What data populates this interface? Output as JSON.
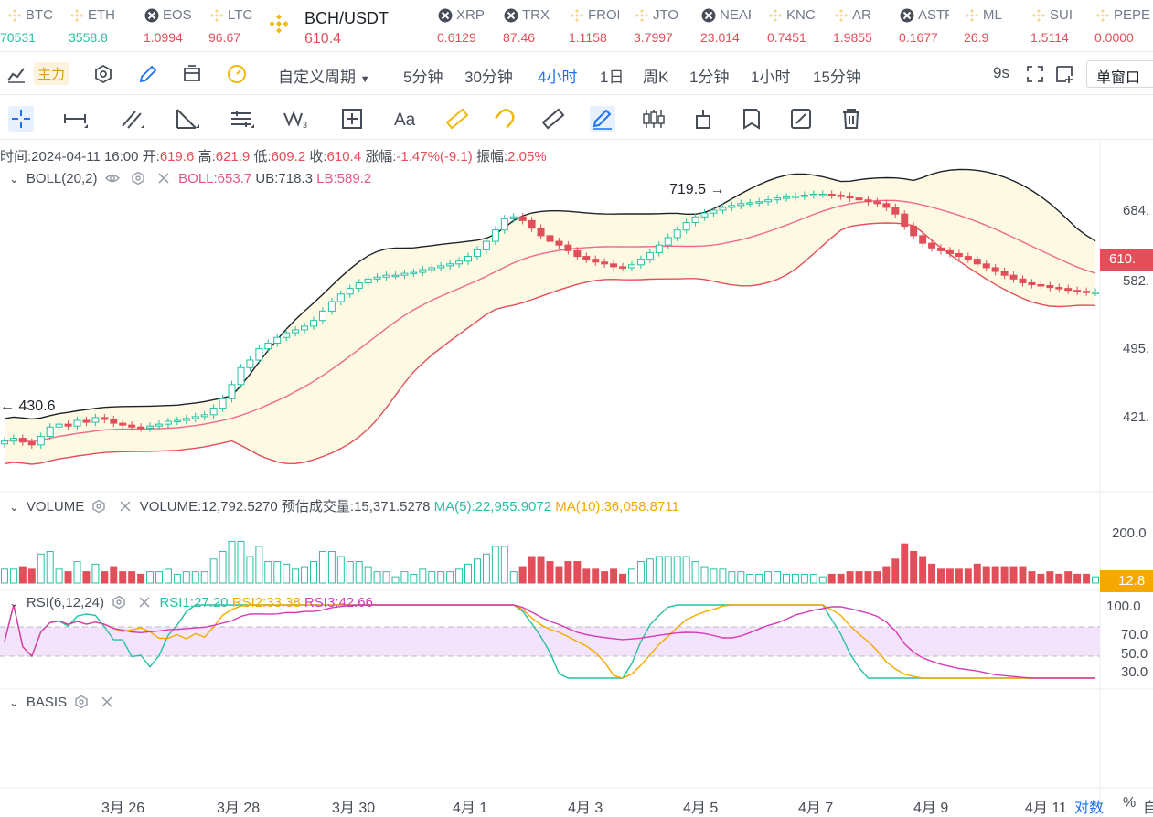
{
  "tickers": [
    {
      "name": "BTC",
      "price": "70531",
      "color": "#26c0a2",
      "icon": "binance-coin-icon"
    },
    {
      "name": "ETH",
      "price": "3558.8",
      "color": "#26c0a2",
      "icon": "binance-coin-icon"
    },
    {
      "name": "EOS",
      "price": "1.0994",
      "color": "#e24e59",
      "icon": "grid-coin-icon"
    },
    {
      "name": "LTC",
      "price": "96.67",
      "color": "#e24e59",
      "icon": "binance-coin-icon"
    },
    {
      "name": "BCH/USDT",
      "price": "610.4",
      "color": "#e24e59",
      "icon": "binance-coin-icon",
      "active": true
    },
    {
      "name": "XRP",
      "price": "0.6129",
      "color": "#e24e59",
      "icon": "grid-coin-icon"
    },
    {
      "name": "TRX",
      "price": "87.46",
      "color": "#e24e59",
      "icon": "grid-coin-icon"
    },
    {
      "name": "FRONT",
      "price": "1.1158",
      "color": "#e24e59",
      "icon": "binance-coin-icon"
    },
    {
      "name": "JTO",
      "price": "3.7997",
      "color": "#e24e59",
      "icon": "binance-coin-icon"
    },
    {
      "name": "NEAR",
      "price": "23.014",
      "color": "#e24e59",
      "icon": "grid-coin-icon"
    },
    {
      "name": "KNC",
      "price": "0.7451",
      "color": "#e24e59",
      "icon": "binance-coin-icon"
    },
    {
      "name": "AR",
      "price": "1.9855",
      "color": "#e24e59",
      "icon": "binance-coin-icon"
    },
    {
      "name": "ASTR",
      "price": "0.1677",
      "color": "#e24e59",
      "icon": "grid-coin-icon"
    },
    {
      "name": "ML",
      "price": "26.9",
      "color": "#e24e59",
      "icon": "binance-coin-icon"
    },
    {
      "name": "SUI",
      "price": "1.5114",
      "color": "#e24e59",
      "icon": "binance-coin-icon"
    },
    {
      "name": "PEPE",
      "price": "0.0000",
      "color": "#e24e59",
      "icon": "binance-coin-icon"
    }
  ],
  "period_bar": {
    "main_label": "主力",
    "custom_period": "自定义周期",
    "periods": [
      "5分钟",
      "30分钟",
      "4小时",
      "1日",
      "周K",
      "1分钟",
      "1小时",
      "15分钟"
    ],
    "active_period": "4小时",
    "countdown": "9s",
    "window_mode": "单窗口"
  },
  "info": {
    "time_label": "时间:",
    "time": "2024-04-11 16:00",
    "open_label": "开:",
    "open": "619.6",
    "high_label": "高:",
    "high": "621.9",
    "low_label": "低:",
    "low": "609.2",
    "close_label": "收:",
    "close": "610.4",
    "change_label": "涨幅:",
    "change": "-1.47%(-9.1)",
    "amp_label": "振幅:",
    "amp": "2.05%"
  },
  "boll": {
    "title": "BOLL(20,2)",
    "boll_label": "BOLL:",
    "boll": "653.7",
    "ub_label": "UB:",
    "ub": "718.3",
    "lb_label": "LB:",
    "lb": "589.2"
  },
  "volume": {
    "title": "VOLUME",
    "vol_label": "VOLUME:",
    "vol": "12,792.5270",
    "est_label": "预估成交量:",
    "est": "15,371.5278",
    "ma5_label": "MA(5):",
    "ma5": "22,955.9072",
    "ma10_label": "MA(10):",
    "ma10": "36,058.8711"
  },
  "rsi": {
    "title": "RSI(6,12,24)",
    "rsi1_label": "RSI1:",
    "rsi1": "27.20",
    "rsi2_label": "RSI2:",
    "rsi2": "33.38",
    "rsi3_label": "RSI3:",
    "rsi3": "42.66"
  },
  "basis": {
    "title": "BASIS"
  },
  "price_axis": [
    "684.",
    "610.",
    "582.",
    "495.",
    "421."
  ],
  "volume_axis": [
    "200.0",
    "12.8"
  ],
  "rsi_axis": [
    "100.0",
    "70.0",
    "50.0",
    "30.0"
  ],
  "dates": [
    "3月 26",
    "3月 28",
    "3月 30",
    "4月 1",
    "4月 3",
    "4月 5",
    "4月 7",
    "4月 9",
    "4月 11"
  ],
  "bottom_controls": {
    "log_label": "对数",
    "percent_label": "%",
    "auto_label": "自"
  },
  "annotations": {
    "high_mark": "719.5 →",
    "low_mark": "← 430.6"
  },
  "colors": {
    "up": "#26c0a2",
    "down": "#e24e59",
    "band_fill": "#fdf9e3",
    "accent": "#1f72f2",
    "brand": "#f0b90b"
  },
  "chart_data": {
    "type": "candlestick",
    "ylim": [
      410,
      730
    ],
    "close_series": [
      452,
      455,
      451,
      448,
      457,
      467,
      470,
      468,
      474,
      472,
      477,
      475,
      471,
      469,
      467,
      466,
      468,
      470,
      473,
      474,
      476,
      478,
      480,
      487,
      497,
      512,
      530,
      538,
      550,
      556,
      562,
      567,
      570,
      574,
      580,
      590,
      600,
      608,
      614,
      620,
      624,
      626,
      628,
      628,
      630,
      631,
      634,
      636,
      638,
      640,
      643,
      648,
      655,
      664,
      676,
      688,
      690,
      686,
      678,
      670,
      664,
      660,
      654,
      648,
      645,
      642,
      640,
      637,
      636,
      639,
      645,
      652,
      660,
      668,
      676,
      684,
      690,
      694,
      697,
      700,
      702,
      704,
      705,
      706,
      708,
      710,
      711,
      712,
      713,
      714,
      714,
      713,
      712,
      710,
      708,
      706,
      704,
      700,
      693,
      680,
      670,
      662,
      657,
      654,
      651,
      648,
      645,
      640,
      636,
      632,
      628,
      624,
      620,
      618,
      617,
      615,
      614,
      612,
      611,
      610,
      610
    ],
    "last_close": 610.4
  }
}
